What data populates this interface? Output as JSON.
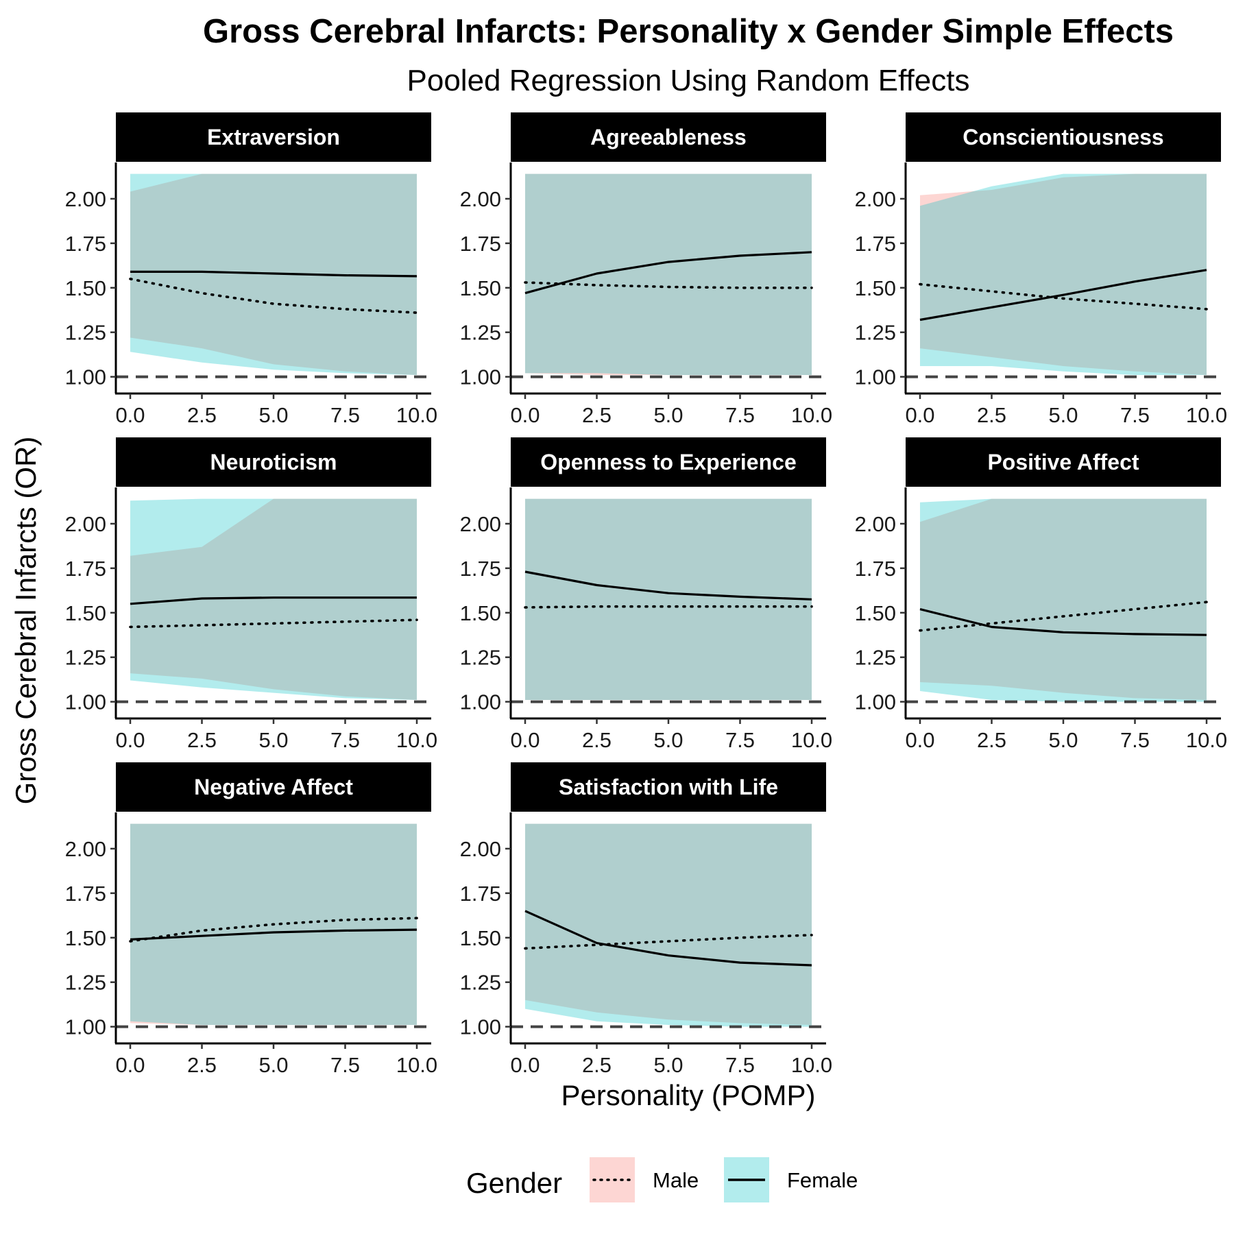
{
  "chart_data": {
    "type": "line",
    "title": "Gross Cerebral Infarcts: Personality x Gender Simple Effects",
    "subtitle": "Pooled Regression Using Random Effects",
    "xlabel": "Personality (POMP)",
    "ylabel": "Gross Cerebral Infarcts (OR)",
    "xlim": [
      0,
      10
    ],
    "ylim": [
      0.96,
      2.2
    ],
    "x_ticks": [
      "0.0",
      "2.5",
      "5.0",
      "7.5",
      "10.0"
    ],
    "y_ticks": [
      "1.00",
      "1.25",
      "1.50",
      "1.75",
      "2.00"
    ],
    "reference_line": 1.0,
    "band_cap": 2.14,
    "grid": false,
    "legend": {
      "title": "Gender",
      "position": "bottom",
      "entries": [
        {
          "label": "Male",
          "line": "dotted",
          "fill": "#f8766d"
        },
        {
          "label": "Female",
          "line": "solid",
          "fill": "#00bfc4"
        }
      ]
    },
    "colors": {
      "male_ribbon": "#f8766d",
      "female_ribbon": "#00bfc4",
      "strip_background": "#000000",
      "reference_line": "#444444"
    },
    "panels": [
      {
        "facet": "Extraversion",
        "x": [
          0,
          2.5,
          5,
          7.5,
          10
        ],
        "series": [
          {
            "name": "Male",
            "line": "dotted",
            "values": [
              1.55,
              1.47,
              1.41,
              1.38,
              1.36
            ],
            "lower": [
              1.22,
              1.16,
              1.07,
              1.03,
              1.01
            ],
            "upper": [
              2.04,
              2.14,
              2.14,
              2.14,
              2.14
            ]
          },
          {
            "name": "Female",
            "line": "solid",
            "values": [
              1.59,
              1.59,
              1.58,
              1.57,
              1.565
            ],
            "lower": [
              1.14,
              1.08,
              1.04,
              1.02,
              1.01
            ],
            "upper": [
              2.14,
              2.14,
              2.14,
              2.14,
              2.14
            ]
          }
        ]
      },
      {
        "facet": "Agreeableness",
        "x": [
          0,
          2.5,
          5,
          7.5,
          10
        ],
        "series": [
          {
            "name": "Male",
            "line": "dotted",
            "values": [
              1.53,
              1.515,
              1.505,
              1.5,
              1.5
            ],
            "lower": [
              1.02,
              1.01,
              1.01,
              1.01,
              1.01
            ],
            "upper": [
              2.14,
              2.14,
              2.14,
              2.14,
              2.14
            ]
          },
          {
            "name": "Female",
            "line": "solid",
            "values": [
              1.47,
              1.58,
              1.645,
              1.68,
              1.7
            ],
            "lower": [
              1.02,
              1.02,
              1.01,
              1.01,
              1.01
            ],
            "upper": [
              2.14,
              2.14,
              2.14,
              2.14,
              2.14
            ]
          }
        ]
      },
      {
        "facet": "Conscientiousness",
        "x": [
          0,
          2.5,
          5,
          7.5,
          10
        ],
        "series": [
          {
            "name": "Male",
            "line": "dotted",
            "values": [
              1.52,
              1.48,
              1.44,
              1.41,
              1.38
            ],
            "lower": [
              1.16,
              1.11,
              1.06,
              1.03,
              1.01
            ],
            "upper": [
              2.02,
              2.05,
              2.12,
              2.14,
              2.14
            ]
          },
          {
            "name": "Female",
            "line": "solid",
            "values": [
              1.32,
              1.39,
              1.46,
              1.535,
              1.6
            ],
            "lower": [
              1.06,
              1.06,
              1.03,
              1.01,
              1.01
            ],
            "upper": [
              1.96,
              2.07,
              2.14,
              2.14,
              2.14
            ]
          }
        ]
      },
      {
        "facet": "Neuroticism",
        "x": [
          0,
          2.5,
          5,
          7.5,
          10
        ],
        "series": [
          {
            "name": "Male",
            "line": "dotted",
            "values": [
              1.42,
              1.43,
              1.44,
              1.45,
              1.46
            ],
            "lower": [
              1.16,
              1.13,
              1.07,
              1.03,
              1.01
            ],
            "upper": [
              1.82,
              1.87,
              2.14,
              2.14,
              2.14
            ]
          },
          {
            "name": "Female",
            "line": "solid",
            "values": [
              1.55,
              1.58,
              1.585,
              1.585,
              1.585
            ],
            "lower": [
              1.12,
              1.08,
              1.05,
              1.02,
              1.01
            ],
            "upper": [
              2.13,
              2.14,
              2.14,
              2.14,
              2.14
            ]
          }
        ]
      },
      {
        "facet": "Openness to Experience",
        "x": [
          0,
          2.5,
          5,
          7.5,
          10
        ],
        "series": [
          {
            "name": "Male",
            "line": "dotted",
            "values": [
              1.53,
              1.535,
              1.535,
              1.535,
              1.535
            ],
            "lower": [
              1.01,
              1.01,
              1.01,
              1.01,
              1.01
            ],
            "upper": [
              2.14,
              2.14,
              2.14,
              2.14,
              2.14
            ]
          },
          {
            "name": "Female",
            "line": "solid",
            "values": [
              1.73,
              1.655,
              1.61,
              1.59,
              1.575
            ],
            "lower": [
              1.01,
              1.01,
              1.01,
              1.01,
              1.01
            ],
            "upper": [
              2.14,
              2.14,
              2.14,
              2.14,
              2.14
            ]
          }
        ]
      },
      {
        "facet": "Positive Affect",
        "x": [
          0,
          2.5,
          5,
          7.5,
          10
        ],
        "series": [
          {
            "name": "Male",
            "line": "dotted",
            "values": [
              1.4,
              1.44,
              1.48,
              1.52,
              1.56
            ],
            "lower": [
              1.11,
              1.09,
              1.05,
              1.02,
              1.01
            ],
            "upper": [
              2.01,
              2.14,
              2.14,
              2.14,
              2.14
            ]
          },
          {
            "name": "Female",
            "line": "solid",
            "values": [
              1.52,
              1.42,
              1.39,
              1.38,
              1.375
            ],
            "lower": [
              1.06,
              1.01,
              1.0,
              1.0,
              1.0
            ],
            "upper": [
              2.12,
              2.14,
              2.14,
              2.14,
              2.14
            ]
          }
        ]
      },
      {
        "facet": "Negative Affect",
        "x": [
          0,
          2.5,
          5,
          7.5,
          10
        ],
        "series": [
          {
            "name": "Male",
            "line": "dotted",
            "values": [
              1.48,
              1.54,
              1.575,
              1.6,
              1.61
            ],
            "lower": [
              1.02,
              1.01,
              1.01,
              1.01,
              1.01
            ],
            "upper": [
              2.14,
              2.14,
              2.14,
              2.14,
              2.14
            ]
          },
          {
            "name": "Female",
            "line": "solid",
            "values": [
              1.49,
              1.51,
              1.53,
              1.54,
              1.545
            ],
            "lower": [
              1.03,
              1.01,
              1.01,
              1.01,
              1.01
            ],
            "upper": [
              2.14,
              2.14,
              2.14,
              2.14,
              2.14
            ]
          }
        ]
      },
      {
        "facet": "Satisfaction with Life",
        "x": [
          0,
          2.5,
          5,
          7.5,
          10
        ],
        "series": [
          {
            "name": "Male",
            "line": "dotted",
            "values": [
              1.44,
              1.46,
              1.48,
              1.5,
              1.515
            ],
            "lower": [
              1.15,
              1.08,
              1.04,
              1.02,
              1.01
            ],
            "upper": [
              2.14,
              2.14,
              2.14,
              2.14,
              2.14
            ]
          },
          {
            "name": "Female",
            "line": "solid",
            "values": [
              1.65,
              1.47,
              1.4,
              1.36,
              1.345
            ],
            "lower": [
              1.1,
              1.03,
              1.01,
              1.0,
              1.0
            ],
            "upper": [
              2.14,
              2.14,
              2.14,
              2.14,
              2.14
            ]
          }
        ]
      }
    ]
  }
}
